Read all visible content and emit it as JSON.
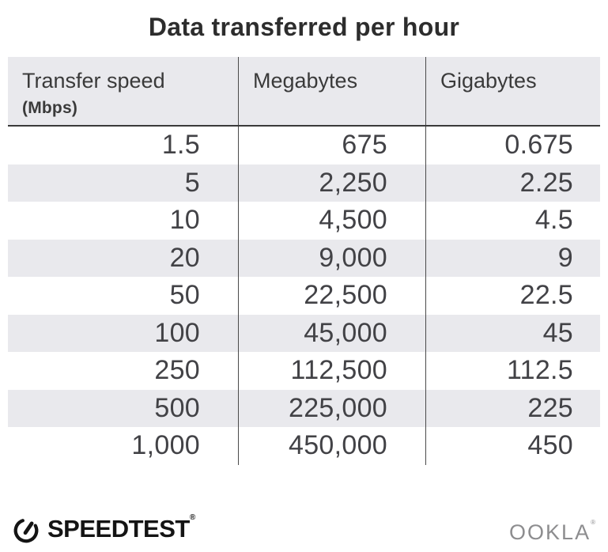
{
  "title": "Data transferred per hour",
  "table": {
    "columns": [
      {
        "label": "Transfer speed",
        "sublabel": "(Mbps)"
      },
      {
        "label": "Megabytes"
      },
      {
        "label": "Gigabytes"
      }
    ],
    "rows": [
      [
        "1.5",
        "675",
        "0.675"
      ],
      [
        "5",
        "2,250",
        "2.25"
      ],
      [
        "10",
        "4,500",
        "4.5"
      ],
      [
        "20",
        "9,000",
        "9"
      ],
      [
        "50",
        "22,500",
        "22.5"
      ],
      [
        "100",
        "45,000",
        "45"
      ],
      [
        "250",
        "112,500",
        "112.5"
      ],
      [
        "500",
        "225,000",
        "225"
      ],
      [
        "1,000",
        "450,000",
        "450"
      ]
    ]
  },
  "footer": {
    "brand": "SPEEDTEST",
    "brand_mark": "®",
    "company": "OOKLA",
    "company_mark": "®",
    "gauge_icon": "speedtest-gauge-icon"
  },
  "colors": {
    "stripe": "#e9e9ed",
    "header_bg": "#e9e9ed",
    "divider": "#4a4a4a",
    "header_rule": "#3a3a3a",
    "title_text": "#2d2d2d",
    "cell_text": "#424246",
    "brand_text": "#141414",
    "company_text": "#8d8d8f"
  },
  "chart_data": {
    "type": "table",
    "title": "Data transferred per hour",
    "columns": [
      "Transfer speed (Mbps)",
      "Megabytes",
      "Gigabytes"
    ],
    "rows": [
      [
        1.5,
        675,
        0.675
      ],
      [
        5,
        2250,
        2.25
      ],
      [
        10,
        4500,
        4.5
      ],
      [
        20,
        9000,
        9
      ],
      [
        50,
        22500,
        22.5
      ],
      [
        100,
        45000,
        45
      ],
      [
        250,
        112500,
        112.5
      ],
      [
        500,
        225000,
        225
      ],
      [
        1000,
        450000,
        450
      ]
    ],
    "layout_hints": {
      "striped_rows": "even data rows shaded",
      "alignment": "numeric columns right-aligned",
      "source_brand": "Speedtest by Ookla"
    }
  }
}
